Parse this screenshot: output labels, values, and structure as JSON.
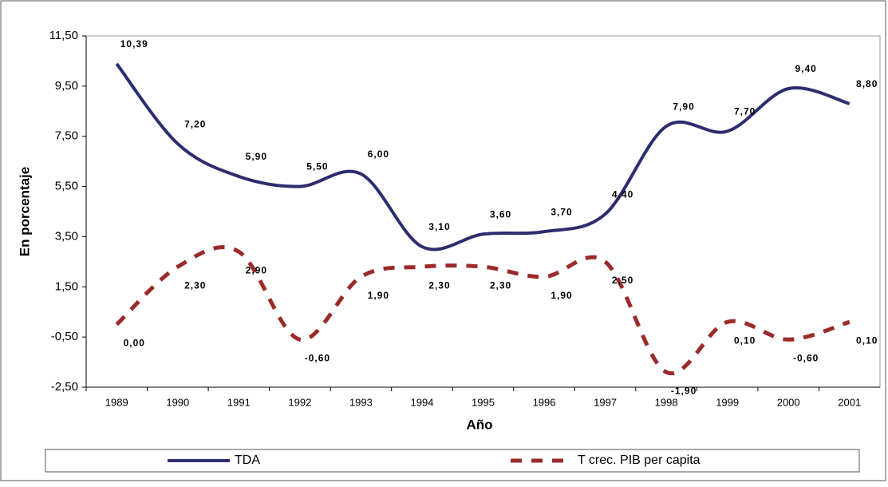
{
  "chart_data": {
    "type": "line",
    "x_label": "Año",
    "y_label": "En porcentaje",
    "categories": [
      "1989",
      "1990",
      "1991",
      "1992",
      "1993",
      "1994",
      "1995",
      "1996",
      "1997",
      "1998",
      "1999",
      "2000",
      "2001"
    ],
    "series": [
      {
        "name": "TDA",
        "color": "#2b2d6e",
        "dash": false,
        "values": [
          10.39,
          7.2,
          5.9,
          5.5,
          6.0,
          3.1,
          3.6,
          3.7,
          4.4,
          7.9,
          7.7,
          9.4,
          8.8
        ],
        "value_labels": [
          "10,39",
          "7,20",
          "5,90",
          "5,50",
          "6,00",
          "3,10",
          "3,60",
          "3,70",
          "4,40",
          "7,90",
          "7,70",
          "9,40",
          "8,80"
        ]
      },
      {
        "name": "T crec. PIB per capita",
        "color": "#9b2a2a",
        "dash": true,
        "values": [
          0.0,
          2.3,
          2.9,
          -0.6,
          1.9,
          2.3,
          2.3,
          1.9,
          2.5,
          -1.9,
          0.1,
          -0.6,
          0.1
        ],
        "value_labels": [
          "0,00",
          "2,30",
          "2,90",
          "-0,60",
          "1,90",
          "2,30",
          "2,30",
          "1,90",
          "2,50",
          "-1,90",
          "0,10",
          "-0,60",
          "0,10"
        ]
      }
    ],
    "ylim": [
      -2.5,
      11.5
    ],
    "yticks": [
      {
        "value": -2.5,
        "label": "-2,50"
      },
      {
        "value": -0.5,
        "label": "-0,50"
      },
      {
        "value": 1.5,
        "label": "1,50"
      },
      {
        "value": 3.5,
        "label": "3,50"
      },
      {
        "value": 5.5,
        "label": "5,50"
      },
      {
        "value": 7.5,
        "label": "7,50"
      },
      {
        "value": 9.5,
        "label": "9,50"
      },
      {
        "value": 11.5,
        "label": "11,50"
      }
    ],
    "legend": "bottom"
  }
}
